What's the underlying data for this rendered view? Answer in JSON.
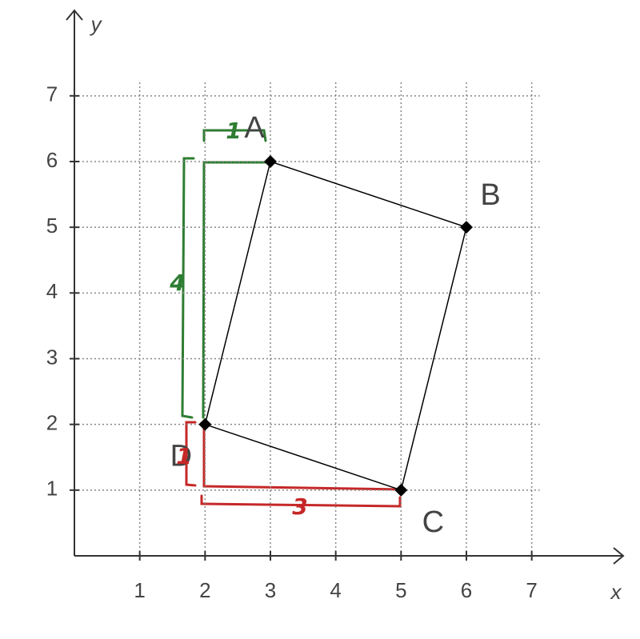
{
  "chart_data": {
    "type": "scatter",
    "x_label": "x",
    "y_label": "y",
    "xlim": [
      0,
      8.4
    ],
    "ylim": [
      0,
      8.3
    ],
    "xticks": [
      1,
      2,
      3,
      4,
      5,
      6,
      7
    ],
    "yticks": [
      1,
      2,
      3,
      4,
      5,
      6,
      7
    ],
    "grid": true,
    "series": [
      {
        "color": "#000000",
        "x": [
          3,
          6,
          5,
          2
        ],
        "values": [
          6,
          5,
          1,
          2
        ],
        "point_labels": [
          "A",
          "B",
          "C",
          "D"
        ]
      }
    ],
    "annotations": [
      {
        "text": "1",
        "color": "#2e7d32"
      },
      {
        "text": "4",
        "color": "#2e7d32"
      },
      {
        "text": "1",
        "color": "#c62828"
      },
      {
        "text": "3",
        "color": "#c62828"
      }
    ]
  }
}
